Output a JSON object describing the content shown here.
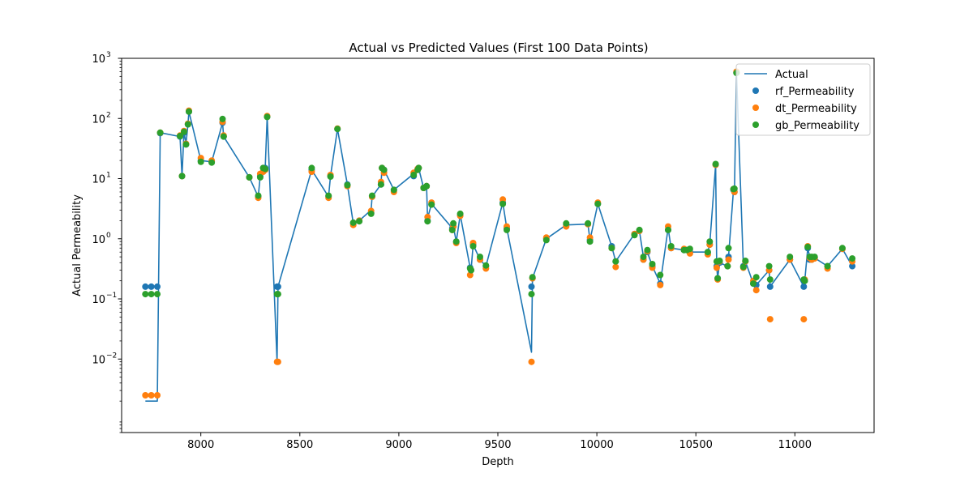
{
  "chart_data": {
    "type": "line+scatter",
    "title": "Actual vs Predicted Values (First 100 Data Points)",
    "xlabel": "Depth",
    "ylabel": "Actual Permeability",
    "xlim": [
      7600,
      11400
    ],
    "ylim": [
      0.0006,
      1000
    ],
    "y_scale": "log",
    "grid": false,
    "legend_position": "top-right",
    "x_ticks": [
      8000,
      8500,
      9000,
      9500,
      10000,
      10500,
      11000
    ],
    "x_tick_labels": [
      "8000",
      "8500",
      "9000",
      "9500",
      "10000",
      "10500",
      "11000"
    ],
    "y_ticks": [
      0.01,
      0.1,
      1,
      10,
      100,
      1000
    ],
    "y_tick_labels": [
      "10",
      "10",
      "10",
      "10",
      "10",
      "10"
    ],
    "y_tick_exponents": [
      "−2",
      "−1",
      "0",
      "1",
      "2",
      "3"
    ],
    "legend": [
      "Actual",
      "rf_Permeability",
      "dt_Permeability",
      "gb_Permeability"
    ],
    "colors": {
      "actual": "#1f77b4",
      "rf": "#1f77b4",
      "dt": "#ff7f0e",
      "gb": "#2ca02c",
      "axes": "#000000",
      "legend_border": "#cccccc"
    },
    "series": [
      {
        "name": "Actual",
        "type": "line",
        "x": [
          7720,
          7750,
          7780,
          7795,
          7895,
          7905,
          7915,
          7925,
          7935,
          7940,
          8000,
          8055,
          8110,
          8115,
          8245,
          8290,
          8300,
          8315,
          8325,
          8335,
          8385,
          8390,
          8560,
          8645,
          8655,
          8690,
          8740,
          8770,
          8800,
          8860,
          8865,
          8910,
          8915,
          8925,
          8975,
          9075,
          9095,
          9100,
          9125,
          9140,
          9145,
          9165,
          9270,
          9275,
          9290,
          9310,
          9360,
          9365,
          9375,
          9410,
          9440,
          9525,
          9545,
          9670,
          9675,
          9745,
          9845,
          9955,
          9965,
          10005,
          10075,
          10095,
          10190,
          10215,
          10235,
          10255,
          10280,
          10320,
          10360,
          10375,
          10440,
          10455,
          10470,
          10560,
          10570,
          10600,
          10605,
          10610,
          10620,
          10660,
          10665,
          10690,
          10695,
          10705,
          10740,
          10750,
          10790,
          10805,
          10870,
          10875,
          10975,
          11045,
          11050,
          11065,
          11075,
          11085,
          11100,
          11165,
          11240,
          11290
        ],
        "values": [
          0.002,
          0.002,
          0.002,
          58,
          50,
          11,
          60,
          38,
          80,
          130,
          20,
          19,
          85,
          50,
          10.5,
          5,
          11,
          15,
          15,
          107,
          0.009,
          0.16,
          14,
          5,
          11,
          67,
          8,
          1.8,
          2,
          3,
          5,
          8,
          15,
          14,
          6.5,
          12,
          14,
          15,
          7,
          7.5,
          2.2,
          3.8,
          1.5,
          1.6,
          0.9,
          2.5,
          0.33,
          0.3,
          0.8,
          0.45,
          0.35,
          4,
          1.5,
          0.013,
          0.22,
          1,
          1.7,
          1.75,
          0.95,
          3.8,
          0.75,
          0.42,
          1.2,
          1.35,
          0.5,
          0.6,
          0.35,
          0.18,
          1.5,
          0.7,
          0.65,
          0.65,
          0.6,
          0.6,
          0.8,
          17,
          0.35,
          0.22,
          0.4,
          0.35,
          0.5,
          6.5,
          6,
          580,
          0.35,
          0.42,
          0.18,
          0.17,
          0.3,
          0.16,
          0.45,
          0.16,
          0.2,
          0.7,
          0.5,
          0.45,
          0.48,
          0.35,
          0.68,
          0.35
        ]
      },
      {
        "name": "rf_Permeability",
        "type": "scatter",
        "x": [
          7720,
          7750,
          7780,
          7795,
          7895,
          7905,
          7915,
          7925,
          7935,
          7940,
          8000,
          8055,
          8110,
          8115,
          8245,
          8290,
          8300,
          8315,
          8325,
          8335,
          8385,
          8390,
          8560,
          8645,
          8655,
          8690,
          8740,
          8770,
          8800,
          8860,
          8865,
          8910,
          8915,
          8925,
          8975,
          9075,
          9095,
          9100,
          9125,
          9140,
          9145,
          9165,
          9270,
          9275,
          9290,
          9310,
          9360,
          9365,
          9375,
          9410,
          9440,
          9525,
          9545,
          9670,
          9675,
          9745,
          9845,
          9955,
          9965,
          10005,
          10075,
          10095,
          10190,
          10215,
          10235,
          10255,
          10280,
          10320,
          10360,
          10375,
          10440,
          10455,
          10470,
          10560,
          10570,
          10600,
          10605,
          10610,
          10620,
          10660,
          10665,
          10690,
          10695,
          10705,
          10740,
          10750,
          10790,
          10805,
          10870,
          10875,
          10975,
          11045,
          11050,
          11065,
          11075,
          11085,
          11100,
          11165,
          11240,
          11290
        ],
        "values": [
          0.16,
          0.16,
          0.16,
          57,
          50,
          11,
          58,
          37,
          80,
          130,
          20,
          19,
          85,
          50,
          10.5,
          5,
          11,
          15,
          15,
          107,
          0.16,
          0.16,
          14,
          5,
          11,
          67,
          8,
          1.8,
          2,
          2.7,
          5,
          8,
          15,
          14,
          6.5,
          11,
          14,
          15,
          7,
          7.5,
          2,
          3.8,
          1.5,
          1.6,
          0.9,
          2.5,
          0.33,
          0.3,
          0.8,
          0.45,
          0.35,
          4,
          1.5,
          0.16,
          0.22,
          1,
          1.7,
          1.75,
          0.95,
          3.8,
          0.75,
          0.42,
          1.2,
          1.35,
          0.45,
          0.6,
          0.35,
          0.18,
          1.4,
          0.7,
          0.65,
          0.65,
          0.6,
          0.6,
          0.8,
          17,
          0.35,
          0.22,
          0.4,
          0.35,
          0.5,
          6.5,
          6,
          580,
          0.35,
          0.42,
          0.18,
          0.17,
          0.3,
          0.16,
          0.45,
          0.16,
          0.2,
          0.7,
          0.45,
          0.45,
          0.48,
          0.35,
          0.68,
          0.35
        ]
      },
      {
        "name": "dt_Permeability",
        "type": "scatter",
        "x": [
          7720,
          7750,
          7780,
          7795,
          7895,
          7905,
          7915,
          7925,
          7935,
          7940,
          8000,
          8055,
          8110,
          8115,
          8245,
          8290,
          8300,
          8315,
          8325,
          8335,
          8385,
          8390,
          8560,
          8645,
          8655,
          8690,
          8740,
          8770,
          8800,
          8860,
          8865,
          8910,
          8915,
          8925,
          8975,
          9075,
          9095,
          9100,
          9125,
          9140,
          9145,
          9165,
          9270,
          9275,
          9290,
          9310,
          9360,
          9365,
          9375,
          9410,
          9440,
          9525,
          9545,
          9670,
          9675,
          9745,
          9845,
          9955,
          9965,
          10005,
          10075,
          10095,
          10190,
          10215,
          10235,
          10255,
          10280,
          10320,
          10360,
          10375,
          10440,
          10455,
          10470,
          10560,
          10570,
          10600,
          10605,
          10610,
          10620,
          10660,
          10665,
          10690,
          10695,
          10705,
          10740,
          10750,
          10790,
          10805,
          10870,
          10875,
          10975,
          11045,
          11050,
          11065,
          11075,
          11085,
          11100,
          11165,
          11240,
          11290
        ],
        "values": [
          0.0025,
          0.0025,
          0.0025,
          58,
          52,
          11,
          62,
          38,
          82,
          135,
          22,
          20,
          88,
          52,
          10.5,
          4.8,
          12,
          13,
          14,
          110,
          0.009,
          0.009,
          13,
          4.8,
          11.5,
          68,
          7.5,
          1.7,
          2,
          2.9,
          5,
          8.8,
          15,
          12.5,
          6,
          12.5,
          14.5,
          15,
          7,
          7.5,
          2.3,
          4,
          1.4,
          1.6,
          0.85,
          2.4,
          0.25,
          0.3,
          0.85,
          0.45,
          0.32,
          4.5,
          1.6,
          0.009,
          0.22,
          1.05,
          1.6,
          1.75,
          1.05,
          4,
          0.7,
          0.34,
          1.2,
          1.35,
          0.45,
          0.62,
          0.33,
          0.17,
          1.6,
          0.7,
          0.68,
          0.65,
          0.57,
          0.55,
          0.8,
          17,
          0.33,
          0.21,
          0.42,
          0.35,
          0.45,
          6.7,
          6,
          600,
          0.33,
          0.42,
          0.2,
          0.14,
          0.3,
          0.046,
          0.45,
          0.046,
          0.21,
          0.75,
          0.48,
          0.45,
          0.47,
          0.32,
          0.68,
          0.42
        ]
      },
      {
        "name": "gb_Permeability",
        "type": "scatter",
        "x": [
          7720,
          7750,
          7780,
          7795,
          7895,
          7905,
          7915,
          7925,
          7935,
          7940,
          8000,
          8055,
          8110,
          8115,
          8245,
          8290,
          8300,
          8315,
          8325,
          8335,
          8385,
          8390,
          8560,
          8645,
          8655,
          8690,
          8740,
          8770,
          8800,
          8860,
          8865,
          8910,
          8915,
          8925,
          8975,
          9075,
          9095,
          9100,
          9125,
          9140,
          9145,
          9165,
          9270,
          9275,
          9290,
          9310,
          9360,
          9365,
          9375,
          9410,
          9440,
          9525,
          9545,
          9670,
          9675,
          9745,
          9845,
          9955,
          9965,
          10005,
          10075,
          10095,
          10190,
          10215,
          10235,
          10255,
          10280,
          10320,
          10360,
          10375,
          10440,
          10455,
          10470,
          10560,
          10570,
          10600,
          10605,
          10610,
          10620,
          10660,
          10665,
          10690,
          10695,
          10705,
          10740,
          10750,
          10790,
          10805,
          10870,
          10875,
          10975,
          11045,
          11050,
          11065,
          11075,
          11085,
          11100,
          11165,
          11240,
          11290
        ],
        "values": [
          0.12,
          0.12,
          0.12,
          58,
          51,
          11,
          60,
          37,
          80,
          130,
          19,
          18.5,
          98,
          50,
          10.5,
          5.2,
          10.5,
          15,
          14.5,
          106,
          0.12,
          0.12,
          15,
          5.2,
          10.8,
          67,
          7.8,
          1.85,
          1.95,
          2.6,
          5.2,
          8,
          15,
          14,
          6.5,
          11.5,
          14,
          15,
          7,
          7.5,
          1.95,
          3.7,
          1.4,
          1.8,
          0.9,
          2.6,
          0.32,
          0.3,
          0.75,
          0.5,
          0.36,
          3.8,
          1.4,
          0.12,
          0.23,
          0.95,
          1.8,
          1.8,
          0.9,
          3.8,
          0.7,
          0.42,
          1.15,
          1.4,
          0.5,
          0.65,
          0.38,
          0.25,
          1.4,
          0.75,
          0.65,
          0.65,
          0.68,
          0.6,
          0.9,
          17.5,
          0.42,
          0.22,
          0.43,
          0.35,
          0.7,
          6.7,
          6.8,
          570,
          0.34,
          0.43,
          0.18,
          0.23,
          0.35,
          0.21,
          0.5,
          0.21,
          0.2,
          0.73,
          0.5,
          0.5,
          0.5,
          0.35,
          0.7,
          0.47
        ]
      }
    ]
  }
}
